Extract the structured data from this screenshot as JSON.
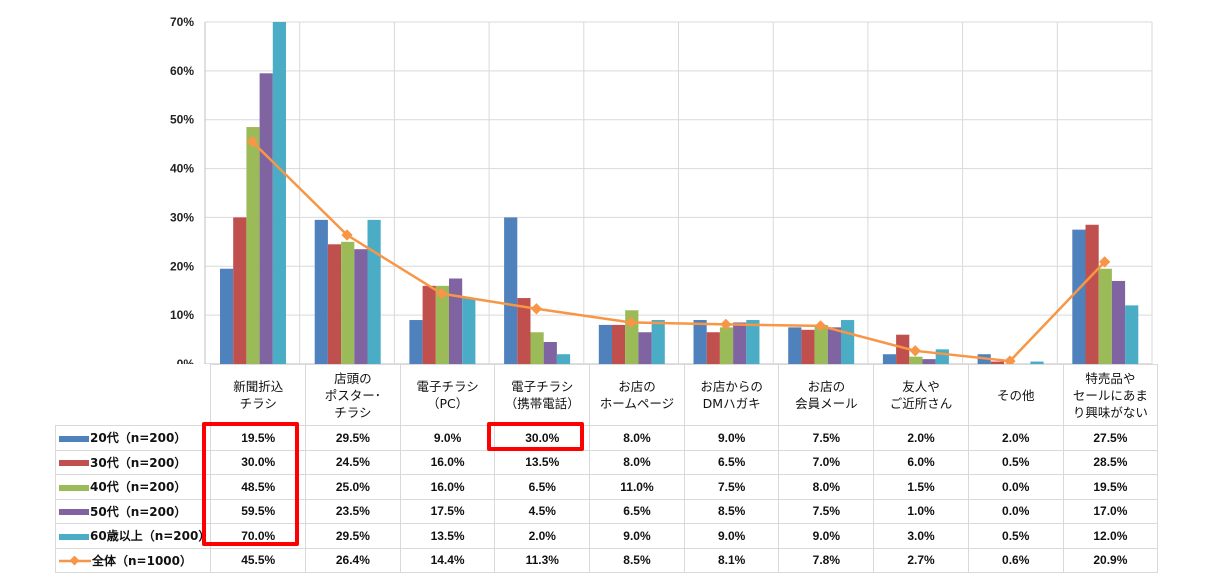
{
  "chart_data": {
    "type": "bar",
    "title": "",
    "categories": [
      "新聞折込\nチラシ",
      "店頭の\nポスター･\nチラシ",
      "電子チラシ\n（PC）",
      "電子チラシ\n（携帯電話）",
      "お店の\nホームページ",
      "お店からの\nDMハガキ",
      "お店の\n会員メール",
      "友人や\nご近所さん",
      "その他",
      "特売品や\nセールにあま\nり興味がない"
    ],
    "series": [
      {
        "name": "20代（n=200）",
        "type": "bar",
        "color": "#4F81BD",
        "values": [
          19.5,
          29.5,
          9.0,
          30.0,
          8.0,
          9.0,
          7.5,
          2.0,
          2.0,
          27.5
        ],
        "labels": [
          "19.5%",
          "29.5%",
          "9.0%",
          "30.0%",
          "8.0%",
          "9.0%",
          "7.5%",
          "2.0%",
          "2.0%",
          "27.5%"
        ]
      },
      {
        "name": "30代（n=200）",
        "type": "bar",
        "color": "#C0504D",
        "values": [
          30.0,
          24.5,
          16.0,
          13.5,
          8.0,
          6.5,
          7.0,
          6.0,
          0.5,
          28.5
        ],
        "labels": [
          "30.0%",
          "24.5%",
          "16.0%",
          "13.5%",
          "8.0%",
          "6.5%",
          "7.0%",
          "6.0%",
          "0.5%",
          "28.5%"
        ]
      },
      {
        "name": "40代（n=200）",
        "type": "bar",
        "color": "#9BBB59",
        "values": [
          48.5,
          25.0,
          16.0,
          6.5,
          11.0,
          7.5,
          8.0,
          1.5,
          0.0,
          19.5
        ],
        "labels": [
          "48.5%",
          "25.0%",
          "16.0%",
          "6.5%",
          "11.0%",
          "7.5%",
          "8.0%",
          "1.5%",
          "0.0%",
          "19.5%"
        ]
      },
      {
        "name": "50代（n=200）",
        "type": "bar",
        "color": "#8064A2",
        "values": [
          59.5,
          23.5,
          17.5,
          4.5,
          6.5,
          8.5,
          7.5,
          1.0,
          0.0,
          17.0
        ],
        "labels": [
          "59.5%",
          "23.5%",
          "17.5%",
          "4.5%",
          "6.5%",
          "8.5%",
          "7.5%",
          "1.0%",
          "0.0%",
          "17.0%"
        ]
      },
      {
        "name": "60歳以上（n=200）",
        "type": "bar",
        "color": "#4BACC6",
        "values": [
          70.0,
          29.5,
          13.5,
          2.0,
          9.0,
          9.0,
          9.0,
          3.0,
          0.5,
          12.0
        ],
        "labels": [
          "70.0%",
          "29.5%",
          "13.5%",
          "2.0%",
          "9.0%",
          "9.0%",
          "9.0%",
          "3.0%",
          "0.5%",
          "12.0%"
        ]
      },
      {
        "name": "全体（n=1000）",
        "type": "line",
        "color": "#F79646",
        "values": [
          45.5,
          26.4,
          14.4,
          11.3,
          8.5,
          8.1,
          7.8,
          2.7,
          0.6,
          20.9
        ],
        "labels": [
          "45.5%",
          "26.4%",
          "14.4%",
          "11.3%",
          "8.5%",
          "8.1%",
          "7.8%",
          "2.7%",
          "0.6%",
          "20.9%"
        ]
      }
    ],
    "yticks": [
      "0%",
      "10%",
      "20%",
      "30%",
      "40%",
      "50%",
      "60%",
      "70%"
    ],
    "ylim": [
      0,
      70
    ],
    "xlabel": "",
    "ylabel": "",
    "grid": true,
    "legend": "data-table",
    "highlight_color": "#FF0000"
  }
}
